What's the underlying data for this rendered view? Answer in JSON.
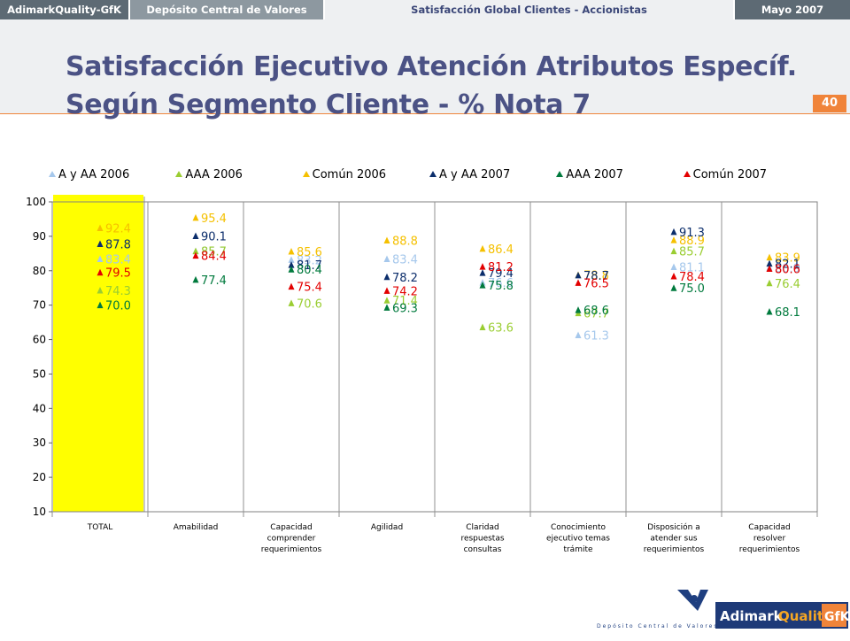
{
  "header": {
    "brand": "AdimarkQuality-GfK",
    "client": "Depósito Central de Valores",
    "study": "Satisfacción Global Clientes - Accionistas",
    "date": "Mayo 2007",
    "page_number": "40"
  },
  "title": {
    "line1": "Satisfacción Ejecutivo Atención Atributos Específ.",
    "line2": "Según Segmento Cliente - % Nota 7"
  },
  "chart_data": {
    "type": "scatter",
    "categories": [
      [
        "TOTAL"
      ],
      [
        "Amabilidad"
      ],
      [
        "Capacidad",
        "comprender",
        "requerimientos"
      ],
      [
        "Agilidad"
      ],
      [
        "Claridad",
        "respuestas",
        "consultas"
      ],
      [
        "Conocimiento",
        "ejecutivo temas",
        "trámite"
      ],
      [
        "Disposición a",
        "atender sus",
        "requerimientos"
      ],
      [
        "Capacidad",
        "resolver",
        "requerimientos"
      ]
    ],
    "highlighted_category": "TOTAL",
    "highlight_color": "#ffff00",
    "ylim": [
      10,
      100
    ],
    "yticks": [
      10,
      20,
      30,
      40,
      50,
      60,
      70,
      80,
      90,
      100
    ],
    "grid": true,
    "legend_position": "top",
    "series": [
      {
        "name": "A y AA 2006",
        "color": "#a6c8ec",
        "values": [
          83.4,
          85.7,
          83.2,
          83.4,
          76.6,
          61.3,
          81.1,
          80.9
        ]
      },
      {
        "name": "AAA 2006",
        "color": "#9acd32",
        "values": [
          74.3,
          85.7,
          70.6,
          71.4,
          63.6,
          67.7,
          85.7,
          76.4
        ]
      },
      {
        "name": "Común 2006",
        "color": "#f5c000",
        "values": [
          92.4,
          95.4,
          85.6,
          88.8,
          86.4,
          78.8,
          88.9,
          83.9
        ]
      },
      {
        "name": "A y AA 2007",
        "color": "#0b2d6b",
        "values": [
          87.8,
          90.1,
          81.7,
          78.2,
          79.4,
          78.7,
          91.3,
          82.1
        ]
      },
      {
        "name": "AAA 2007",
        "color": "#007a3d",
        "values": [
          70.0,
          77.4,
          80.4,
          69.3,
          75.8,
          68.6,
          75.0,
          68.1
        ]
      },
      {
        "name": "Común 2007",
        "color": "#e30000",
        "values": [
          79.5,
          84.4,
          75.4,
          74.2,
          81.2,
          76.5,
          78.4,
          80.6
        ]
      }
    ]
  },
  "footer": {
    "dcv_caption": "Depósito Central de Valores",
    "logo_text_a": "Adimark",
    "logo_text_b": "Quality",
    "logo_text_c": "GfK"
  }
}
